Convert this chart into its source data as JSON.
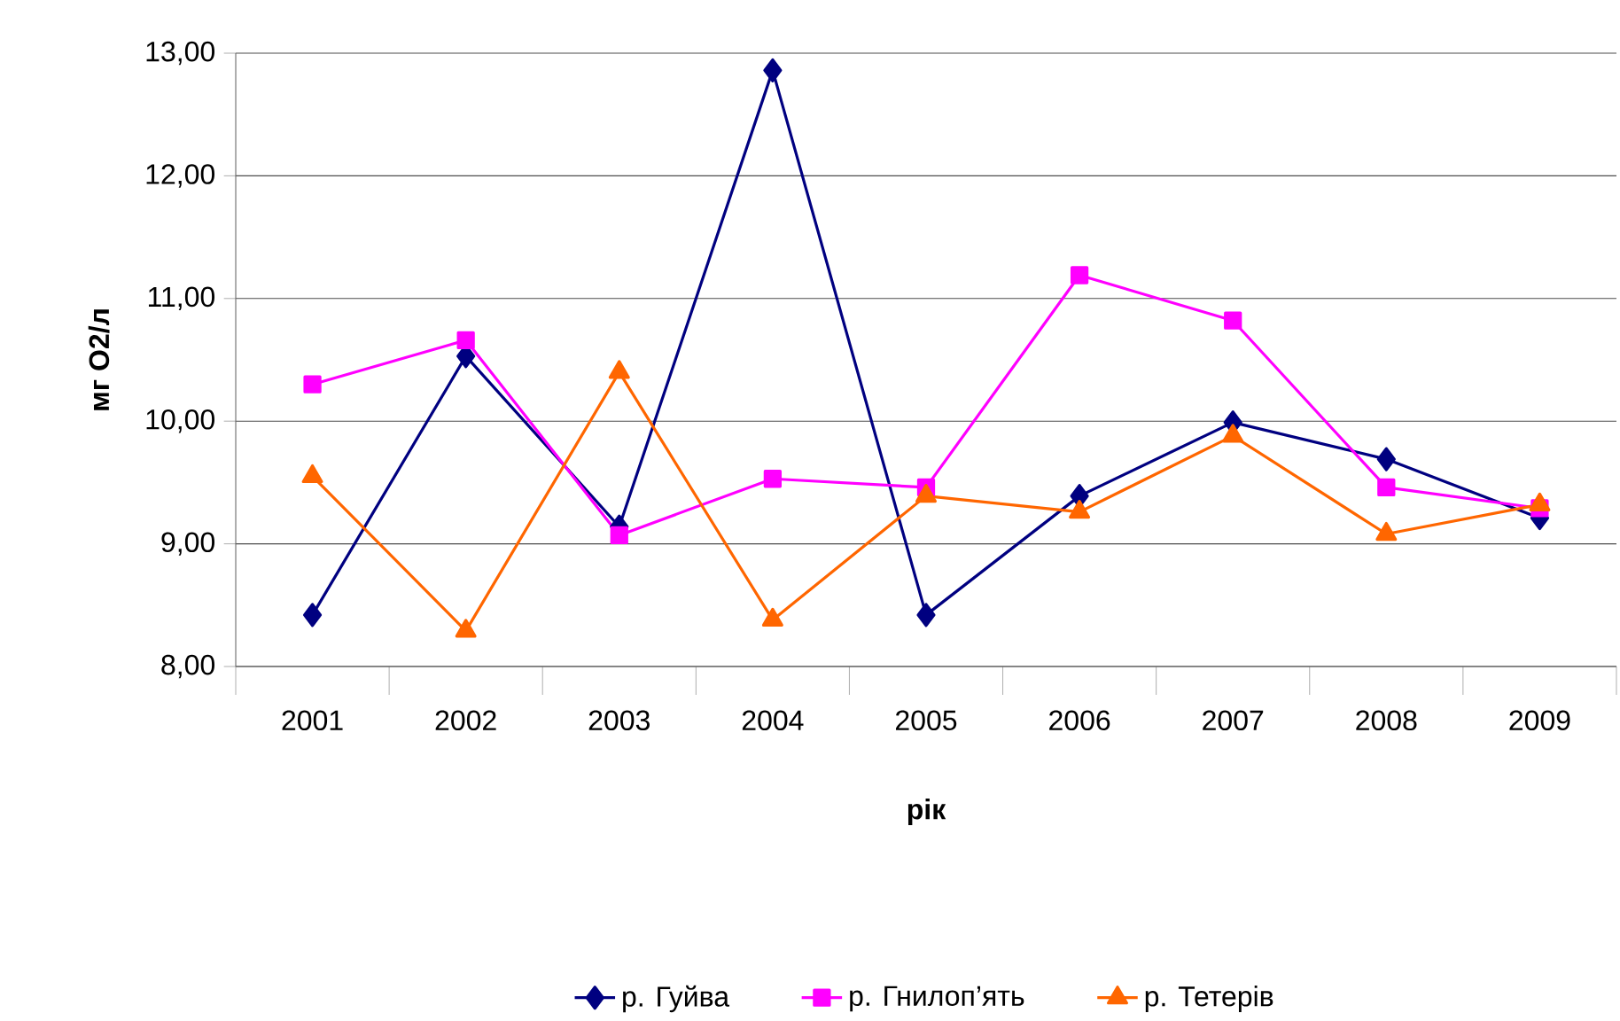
{
  "chart_data": {
    "type": "line",
    "xlabel": "рік",
    "ylabel": "мг О2/л",
    "categories": [
      "2001",
      "2002",
      "2003",
      "2004",
      "2005",
      "2006",
      "2007",
      "2008",
      "2009"
    ],
    "ylim": [
      8,
      13
    ],
    "yticks": [
      {
        "value": 8,
        "label": "8,00"
      },
      {
        "value": 9,
        "label": "9,00"
      },
      {
        "value": 10,
        "label": "10,00"
      },
      {
        "value": 11,
        "label": "11,00"
      },
      {
        "value": 12,
        "label": "12,00"
      },
      {
        "value": 13,
        "label": "13,00"
      }
    ],
    "grid": "y",
    "legend": "bottom",
    "series": [
      {
        "name": "р. Гуйва",
        "color": "#000080",
        "marker": "diamond",
        "values": [
          8.42,
          10.53,
          9.14,
          12.86,
          8.42,
          9.39,
          9.99,
          9.69,
          9.21
        ]
      },
      {
        "name": "р. Гнилоп’ять",
        "color": "#ff00ff",
        "marker": "square",
        "values": [
          10.3,
          10.66,
          9.07,
          9.53,
          9.46,
          11.19,
          10.82,
          9.46,
          9.29
        ]
      },
      {
        "name": "р. Тетерів",
        "color": "#ff6600",
        "marker": "triangle",
        "values": [
          9.55,
          8.29,
          10.4,
          8.38,
          9.39,
          9.26,
          9.88,
          9.08,
          9.32
        ]
      }
    ]
  }
}
